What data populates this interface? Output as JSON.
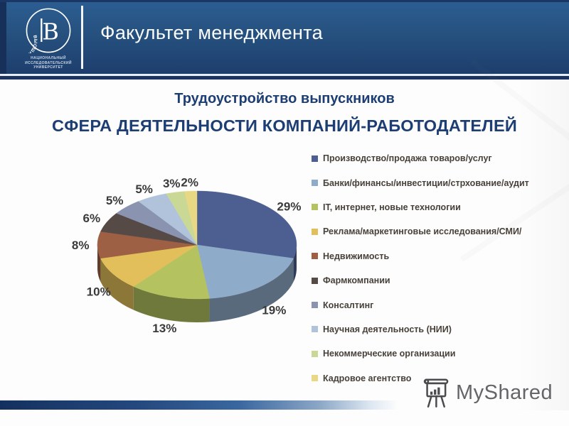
{
  "header": {
    "title": "Факультет менеджмента",
    "logo": {
      "circle_text": "ВЫСШАЯ · ШКОЛА · ЭКОНОМИКИ ·",
      "glyph": "В",
      "subtitle_line1": "НАЦИОНАЛЬНЫЙ ИССЛЕДОВАТЕЛЬСКИЙ",
      "subtitle_line2": "УНИВЕРСИТЕТ"
    }
  },
  "slide": {
    "subtitle": "Трудоустройство выпускников",
    "title": "СФЕРА ДЕЯТЕЛЬНОСТИ КОМПАНИЙ-РАБОТОДАТЕЛЕЙ"
  },
  "chart_data": {
    "type": "pie",
    "style": "3d-exploded-none",
    "start_angle_deg": 0,
    "direction": "clockwise",
    "value_label_format": "percent",
    "legend_position": "right",
    "series": [
      {
        "label": "Производство/продажа товаров/услуг",
        "value": 29,
        "color": "#4d5f91"
      },
      {
        "label": "Банки/финансы/инвестиции/стрхование/аудит",
        "value": 19,
        "color": "#8fabca"
      },
      {
        "label": "IT, интернет, новые технологии",
        "value": 13,
        "color": "#b4c360"
      },
      {
        "label": "Реклама/маркетинговые исследования/СМИ/",
        "value": 10,
        "color": "#e2bf5a"
      },
      {
        "label": "Недвижимость",
        "value": 8,
        "color": "#9d6045"
      },
      {
        "label": "Фармкомпании",
        "value": 6,
        "color": "#554a46"
      },
      {
        "label": "Консалтинг",
        "value": 5,
        "color": "#8a93af"
      },
      {
        "label": "Научная деятельность (НИИ)",
        "value": 5,
        "color": "#b0c3da"
      },
      {
        "label": "Некоммерческие организации",
        "value": 3,
        "color": "#cad896"
      },
      {
        "label": "Кадровое агентство",
        "value": 2,
        "color": "#e9d883"
      }
    ]
  },
  "footer": {
    "brand": "MyShared"
  },
  "colors": {
    "header_gradient_top": "#2c5e93",
    "header_gradient_bottom": "#1e3e6d",
    "divider_navy": "#1c3560",
    "title_text": "#1d3e74",
    "legend_text": "#48413a",
    "label_text": "#3a3a3a"
  }
}
